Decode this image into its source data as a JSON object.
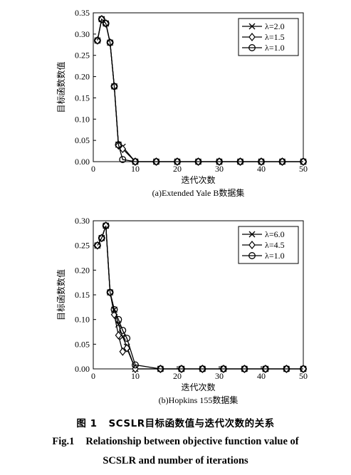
{
  "chart_data": [
    {
      "type": "line",
      "title": "(a)Extended Yale B数据集",
      "xlabel": "迭代次数",
      "ylabel": "目标函数数值",
      "xlim": [
        0,
        50
      ],
      "ylim": [
        0,
        0.35
      ],
      "xticks": [
        "0",
        "10",
        "20",
        "30",
        "40",
        "50"
      ],
      "yticks": [
        "0.00",
        "0.05",
        "0.10",
        "0.15",
        "0.20",
        "0.25",
        "0.30",
        "0.35"
      ],
      "legend_position": "top-right",
      "grid": false,
      "series": [
        {
          "name": "λ=2.0",
          "marker": "x",
          "x": [
            1,
            2,
            3,
            4,
            5,
            6,
            7,
            10,
            15,
            20,
            25,
            30,
            35,
            40,
            45,
            50
          ],
          "y": [
            0.285,
            0.335,
            0.325,
            0.28,
            0.177,
            0.04,
            0.035,
            0.0,
            0.0,
            0.0,
            0.0,
            0.0,
            0.0,
            0.0,
            0.0,
            0.0
          ]
        },
        {
          "name": "λ=1.5",
          "marker": "diamond",
          "x": [
            1,
            2,
            3,
            4,
            5,
            6,
            7,
            10,
            15,
            20,
            25,
            30,
            35,
            40,
            45,
            50
          ],
          "y": [
            0.285,
            0.335,
            0.325,
            0.28,
            0.177,
            0.038,
            0.03,
            0.0,
            0.0,
            0.0,
            0.0,
            0.0,
            0.0,
            0.0,
            0.0,
            0.0
          ]
        },
        {
          "name": "λ=1.0",
          "marker": "circle",
          "x": [
            1,
            2,
            3,
            4,
            5,
            6,
            7,
            10,
            15,
            20,
            25,
            30,
            35,
            40,
            45,
            50
          ],
          "y": [
            0.285,
            0.335,
            0.325,
            0.28,
            0.177,
            0.04,
            0.005,
            0.0,
            0.0,
            0.0,
            0.0,
            0.0,
            0.0,
            0.0,
            0.0,
            0.0
          ]
        }
      ]
    },
    {
      "type": "line",
      "title": "(b)Hopkins 155数据集",
      "xlabel": "迭代次数",
      "ylabel": "目标函数数值",
      "xlim": [
        0,
        50
      ],
      "ylim": [
        0,
        0.3
      ],
      "xticks": [
        "0",
        "10",
        "20",
        "30",
        "40",
        "50"
      ],
      "yticks": [
        "0.00",
        "0.05",
        "0.10",
        "0.15",
        "0.20",
        "0.25",
        "0.30"
      ],
      "legend_position": "top-right",
      "grid": false,
      "series": [
        {
          "name": "λ=6.0",
          "marker": "x",
          "x": [
            1,
            2,
            3,
            4,
            5,
            6,
            7,
            8,
            10,
            16,
            21,
            26,
            31,
            36,
            41,
            46,
            50
          ],
          "y": [
            0.25,
            0.265,
            0.29,
            0.155,
            0.12,
            0.09,
            0.065,
            0.045,
            0.0,
            0.0,
            0.0,
            0.0,
            0.0,
            0.0,
            0.0,
            0.0,
            0.0
          ]
        },
        {
          "name": "λ=4.5",
          "marker": "diamond",
          "x": [
            1,
            2,
            3,
            4,
            5,
            6,
            7,
            8,
            10,
            16,
            21,
            26,
            31,
            36,
            41,
            46,
            50
          ],
          "y": [
            0.25,
            0.265,
            0.29,
            0.155,
            0.11,
            0.068,
            0.035,
            0.042,
            0.0,
            0.0,
            0.0,
            0.0,
            0.0,
            0.0,
            0.0,
            0.0,
            0.0
          ]
        },
        {
          "name": "λ=1.0",
          "marker": "circle",
          "x": [
            1,
            2,
            3,
            4,
            5,
            6,
            7,
            8,
            10,
            16,
            21,
            26,
            31,
            36,
            41,
            46,
            50
          ],
          "y": [
            0.25,
            0.265,
            0.29,
            0.155,
            0.12,
            0.1,
            0.078,
            0.062,
            0.008,
            0.0,
            0.0,
            0.0,
            0.0,
            0.0,
            0.0,
            0.0,
            0.0
          ]
        }
      ]
    }
  ],
  "caption": {
    "cn_num": "图 1",
    "cn_text": "SCSLR目标函数值与迭代次数的关系",
    "en_num": "Fig.1",
    "en_text_line1": "Relationship between objective function value of",
    "en_text_line2": "SCSLR and number of iterations"
  }
}
